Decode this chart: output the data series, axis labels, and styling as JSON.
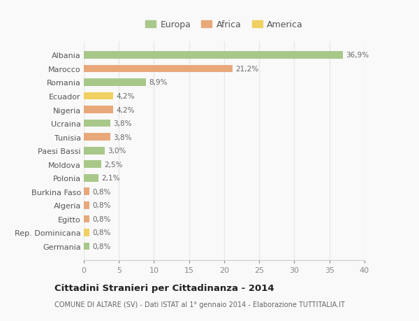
{
  "categories": [
    "Albania",
    "Marocco",
    "Romania",
    "Ecuador",
    "Nigeria",
    "Ucraina",
    "Tunisia",
    "Paesi Bassi",
    "Moldova",
    "Polonia",
    "Burkina Faso",
    "Algeria",
    "Egitto",
    "Rep. Dominicana",
    "Germania"
  ],
  "values": [
    36.9,
    21.2,
    8.9,
    4.2,
    4.2,
    3.8,
    3.8,
    3.0,
    2.5,
    2.1,
    0.8,
    0.8,
    0.8,
    0.8,
    0.8
  ],
  "labels": [
    "36,9%",
    "21,2%",
    "8,9%",
    "4,2%",
    "4,2%",
    "3,8%",
    "3,8%",
    "3,0%",
    "2,5%",
    "2,1%",
    "0,8%",
    "0,8%",
    "0,8%",
    "0,8%",
    "0,8%"
  ],
  "continents": [
    "Europa",
    "Africa",
    "Europa",
    "America",
    "Africa",
    "Europa",
    "Africa",
    "Europa",
    "Europa",
    "Europa",
    "Africa",
    "Africa",
    "Africa",
    "America",
    "Europa"
  ],
  "colors": {
    "Europa": "#a8c88a",
    "Africa": "#e8a87a",
    "America": "#f0d060"
  },
  "title": "Cittadini Stranieri per Cittadinanza - 2014",
  "subtitle": "COMUNE DI ALTARE (SV) - Dati ISTAT al 1° gennaio 2014 - Elaborazione TUTTITALIA.IT",
  "xlim": [
    0,
    40
  ],
  "xticks": [
    0,
    5,
    10,
    15,
    20,
    25,
    30,
    35,
    40
  ],
  "background_color": "#f9f9f9",
  "grid_color": "#e8e8e8",
  "bar_height": 0.55
}
